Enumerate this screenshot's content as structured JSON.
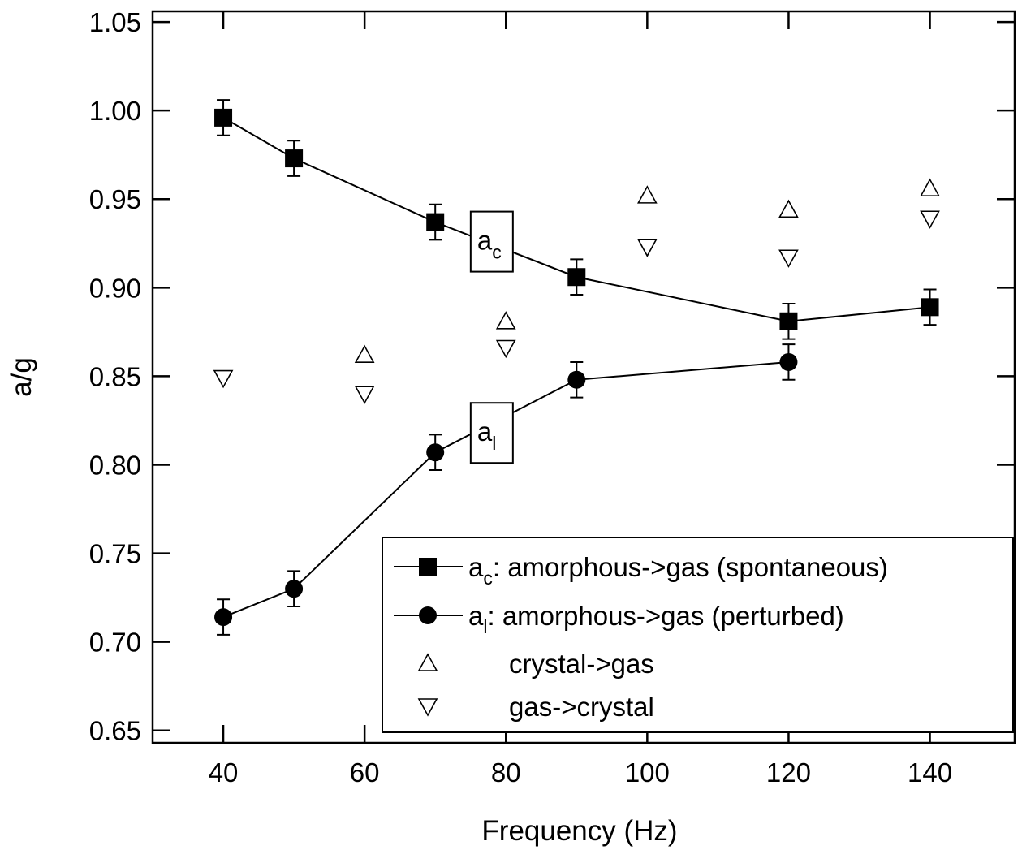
{
  "chart_data": {
    "type": "scatter",
    "xlabel": "Frequency (Hz)",
    "ylabel": "a/g",
    "xlim": [
      30,
      152
    ],
    "ylim": [
      0.643,
      1.056
    ],
    "xticks": [
      40,
      60,
      80,
      100,
      120,
      140
    ],
    "xtick_labels": [
      "40",
      "60",
      "80",
      "100",
      "120",
      "140"
    ],
    "yticks": [
      0.65,
      0.7,
      0.75,
      0.8,
      0.85,
      0.9,
      0.95,
      1.0,
      1.05
    ],
    "ytick_labels": [
      "0.65",
      "0.70",
      "0.75",
      "0.80",
      "0.85",
      "0.90",
      "0.95",
      "1.00",
      "1.05"
    ],
    "grid": false,
    "legend_position": "bottom-right",
    "series": [
      {
        "key": "ac",
        "name": "a_c: amorphous->gas (spontaneous)",
        "legend_main": "a",
        "legend_sub": "c",
        "legend_rest": ": amorphous->gas (spontaneous)",
        "marker": "square",
        "line": true,
        "errorbars": true,
        "x": [
          40,
          50,
          70,
          90,
          120,
          140
        ],
        "y": [
          0.996,
          0.973,
          0.937,
          0.906,
          0.881,
          0.889
        ],
        "err": [
          0.01,
          0.01,
          0.01,
          0.01,
          0.01,
          0.01
        ]
      },
      {
        "key": "al",
        "name": "a_l: amorphous->gas (perturbed)",
        "legend_main": "a",
        "legend_sub": "l",
        "legend_rest": ": amorphous->gas (perturbed)",
        "marker": "circle",
        "line": true,
        "errorbars": true,
        "x": [
          40,
          50,
          70,
          90,
          120
        ],
        "y": [
          0.714,
          0.73,
          0.807,
          0.848,
          0.858
        ],
        "err": [
          0.01,
          0.01,
          0.01,
          0.01,
          0.01
        ]
      },
      {
        "key": "cg",
        "name": "crystal->gas",
        "legend_main": "",
        "legend_sub": "",
        "legend_rest": "crystal->gas",
        "marker": "triangle-up",
        "line": false,
        "errorbars": false,
        "x": [
          60,
          80,
          100,
          120,
          140
        ],
        "y": [
          0.862,
          0.881,
          0.952,
          0.944,
          0.956
        ]
      },
      {
        "key": "gc",
        "name": "gas->crystal",
        "legend_main": "",
        "legend_sub": "",
        "legend_rest": "gas->crystal",
        "marker": "triangle-down",
        "line": false,
        "errorbars": false,
        "x": [
          40,
          60,
          80,
          100,
          120,
          140
        ],
        "y": [
          0.849,
          0.84,
          0.866,
          0.923,
          0.917,
          0.939
        ]
      }
    ],
    "annotations": [
      {
        "main": "a",
        "sub": "c",
        "x": 78,
        "y": 0.926
      },
      {
        "main": "a",
        "sub": "l",
        "x": 78,
        "y": 0.818
      }
    ]
  }
}
